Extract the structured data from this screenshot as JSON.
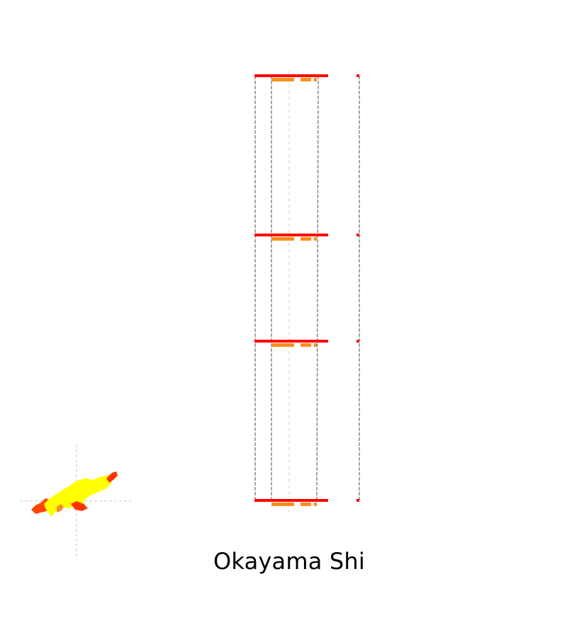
{
  "map": {
    "title": "Okayama Shi",
    "colors": {
      "high": "#ff0000",
      "medium": "#ff8c1a",
      "low": "#ffff00",
      "hot": "#ff4500",
      "guide": "#c8c8c8",
      "outline": "#808080"
    },
    "views": [
      {
        "name": "overview-map",
        "kind": "choropleth"
      },
      {
        "name": "cross-section-stack",
        "kind": "profile",
        "levels": 4
      }
    ]
  }
}
